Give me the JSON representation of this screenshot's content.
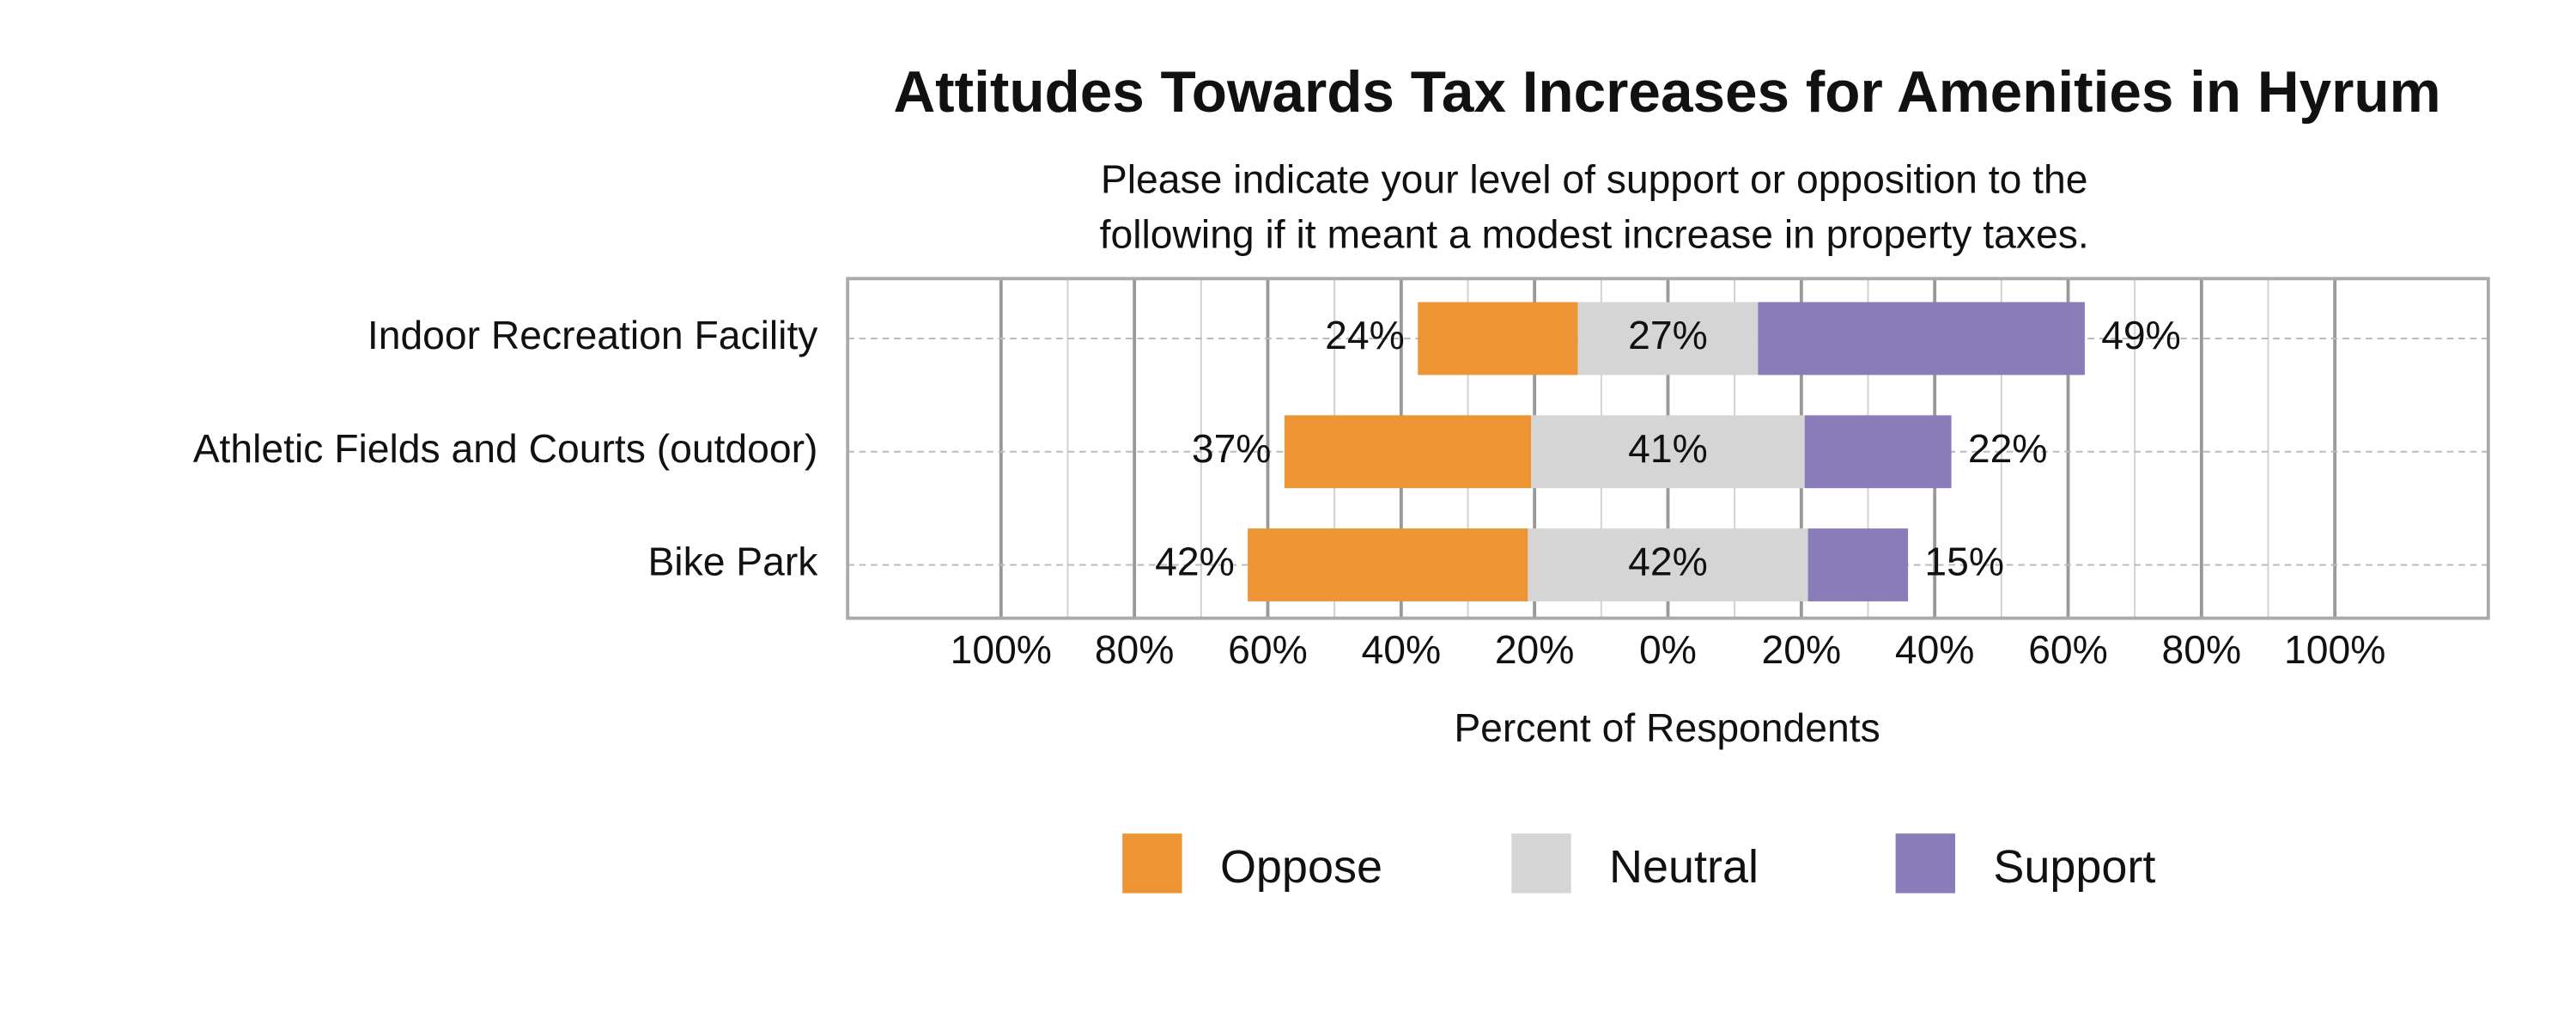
{
  "chart_data": {
    "type": "diverging-bar",
    "title": "Attitudes Towards Tax Increases for Amenities in Hyrum",
    "subtitle": [
      "Please indicate your level of support or opposition to the",
      "following if it meant a modest increase in property taxes."
    ],
    "x_label": "Percent of Respondents",
    "categories": [
      "Indoor Recreation Facility",
      "Athletic Fields and Courts (outdoor)",
      "Bike Park"
    ],
    "series": [
      {
        "name": "Oppose",
        "color": "#ED9434",
        "values": [
          24,
          37,
          42
        ],
        "value_labels": [
          "24%",
          "37%",
          "42%"
        ]
      },
      {
        "name": "Neutral",
        "color": "#D5D5D5",
        "values": [
          27,
          41,
          42
        ],
        "value_labels": [
          "27%",
          "41%",
          "42%"
        ]
      },
      {
        "name": "Support",
        "color": "#8A7CB8",
        "values": [
          49,
          22,
          15
        ],
        "value_labels": [
          "49%",
          "22%",
          "15%"
        ]
      }
    ],
    "xlim": [
      -123,
      123
    ],
    "xticks": [
      {
        "value": -100,
        "label": "100%"
      },
      {
        "value": -80,
        "label": "80%"
      },
      {
        "value": -60,
        "label": "60%"
      },
      {
        "value": -40,
        "label": "40%"
      },
      {
        "value": -20,
        "label": "20%"
      },
      {
        "value": 0,
        "label": "0%"
      },
      {
        "value": 20,
        "label": "20%"
      },
      {
        "value": 40,
        "label": "40%"
      },
      {
        "value": 60,
        "label": "60%"
      },
      {
        "value": 80,
        "label": "80%"
      },
      {
        "value": 100,
        "label": "100%"
      }
    ],
    "grid": true,
    "legend": "bottom"
  }
}
